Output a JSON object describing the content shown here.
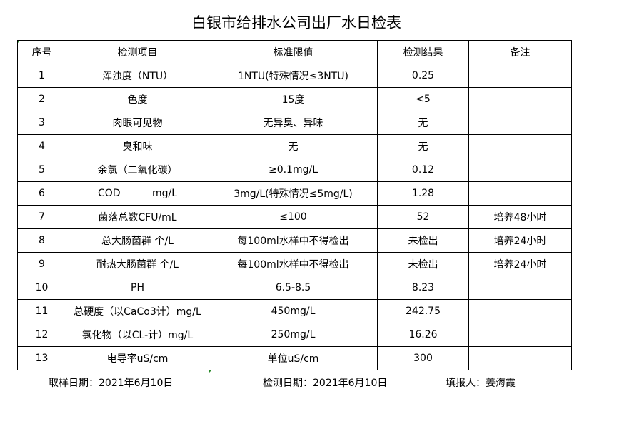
{
  "title": "白银市给排水公司出厂水日检表",
  "headers": [
    "序号",
    "检测项目",
    "标准限值",
    "检测结果",
    "备注"
  ],
  "rows": [
    [
      "1",
      "浑浊度（NTU）",
      "1NTU(特殊情况≤3NTU)",
      "0.25",
      ""
    ],
    [
      "2",
      "色度",
      "15度",
      "<5",
      ""
    ],
    [
      "3",
      "肉眼可见物",
      "无异臭、异味",
      "无",
      ""
    ],
    [
      "4",
      "臭和味",
      "无",
      "无",
      ""
    ],
    [
      "5",
      "余氯（二氧化碳）",
      "≥0.1mg/L",
      "0.12",
      ""
    ],
    [
      "6",
      "COD          mg/L",
      "3mg/L(特殊情况≤5mg/L)",
      "1.28",
      ""
    ],
    [
      "7",
      "菌落总数CFU/mL",
      "≤100",
      "52",
      "培养48小时"
    ],
    [
      "8",
      "总大肠菌群 个/L",
      "每100ml水样中不得检出",
      "未检出",
      "培养24小时"
    ],
    [
      "9",
      "耐热大肠菌群 个/L",
      "每100ml水样中不得检出",
      "未检出",
      "培养24小时"
    ],
    [
      "10",
      "PH",
      "6.5-8.5",
      "8.23",
      ""
    ],
    [
      "11",
      "总硬度（以CaCo3计）mg/L",
      "450mg/L",
      "242.75",
      ""
    ],
    [
      "12",
      "氯化物（以CL-计）mg/L",
      "250mg/L",
      "16.26",
      ""
    ],
    [
      "13",
      "电导率uS/cm",
      "单位uS/cm",
      "300",
      ""
    ]
  ],
  "footer": {
    "sample_date": "取样日期：2021年6月10日",
    "test_date": "检测日期：2021年6月10日",
    "reporter": "填报人：姜海霞"
  }
}
